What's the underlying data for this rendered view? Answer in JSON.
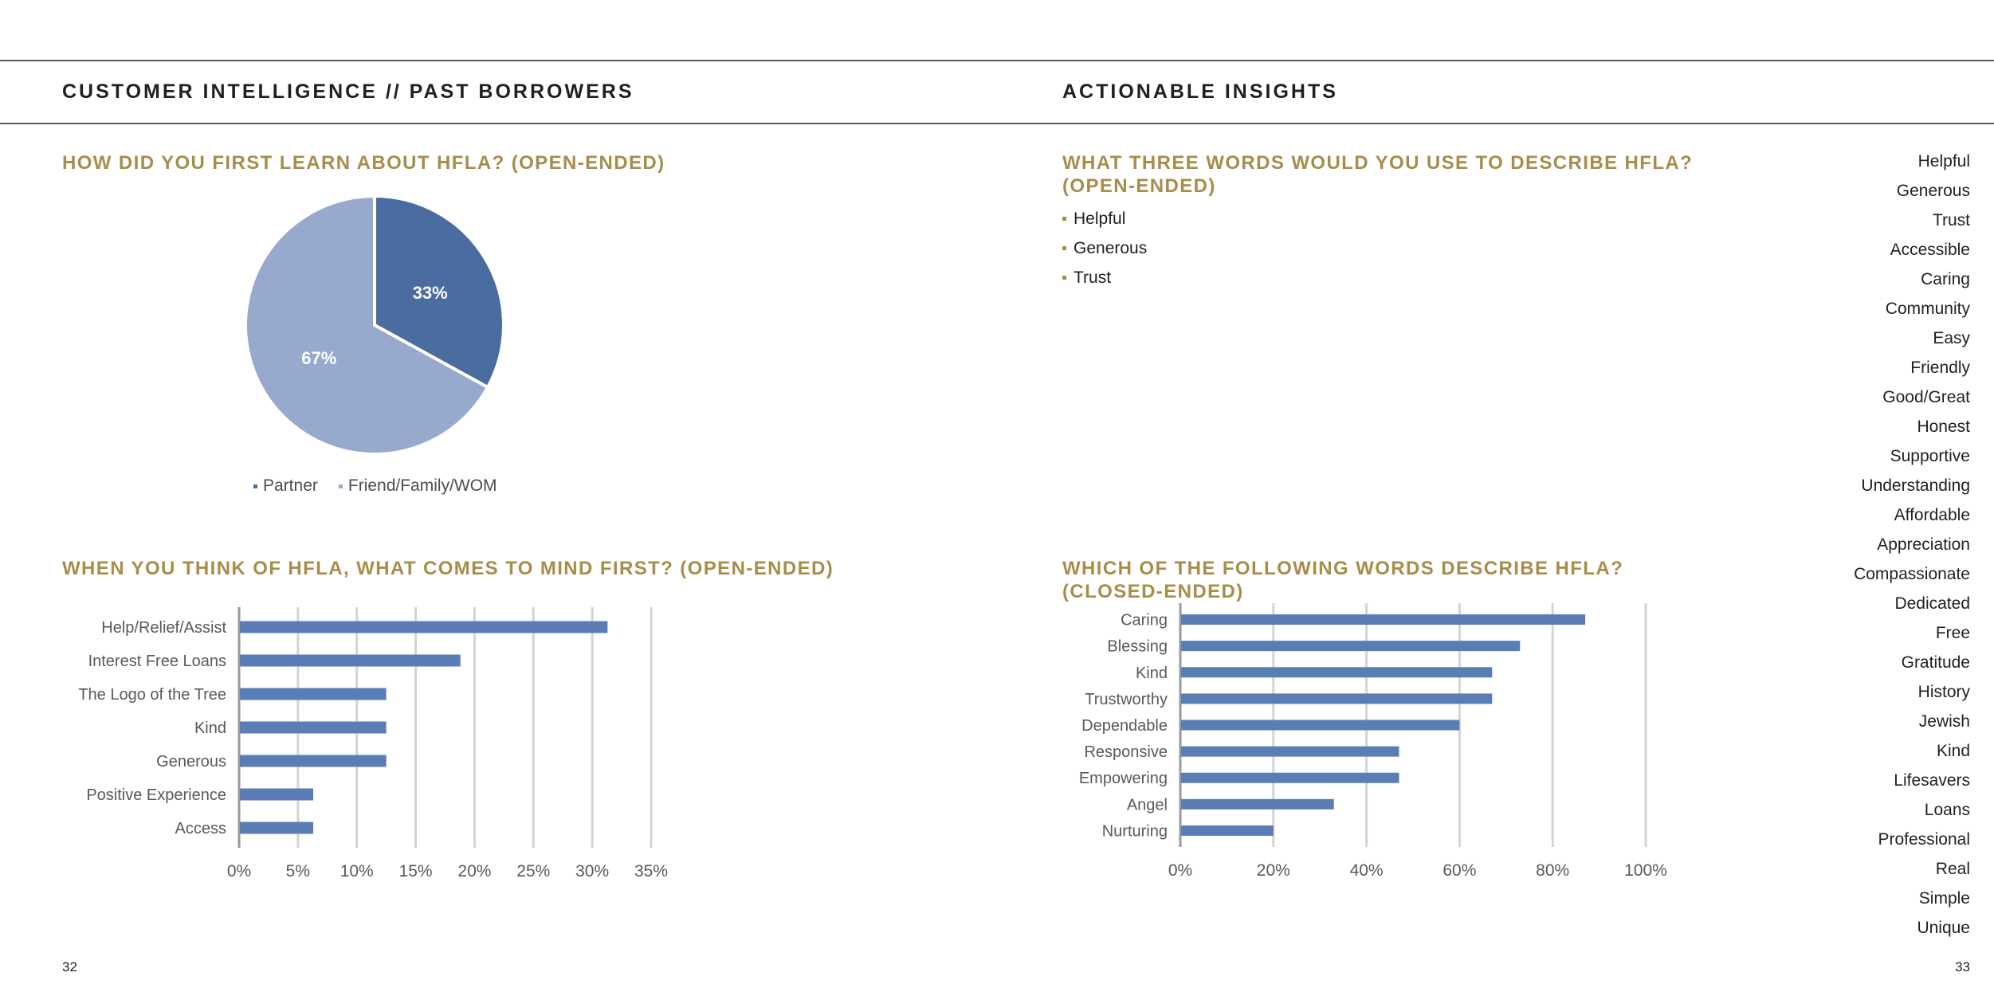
{
  "header": {
    "left_title": "CUSTOMER INTELLIGENCE // PAST BORROWERS",
    "right_title": "ACTIONABLE INSIGHTS"
  },
  "colors": {
    "gold": "#a88d4a",
    "bar_blue": "#5b7db5",
    "pie_dark": "#4a6ca0",
    "pie_light": "#97a9cc",
    "grid": "#d4d4d4"
  },
  "questions": {
    "q1": "HOW DID YOU FIRST LEARN ABOUT HFLA? (OPEN-ENDED)",
    "q2": "WHEN YOU THINK OF HFLA, WHAT COMES TO MIND FIRST? (OPEN-ENDED)",
    "q3_line1": "WHAT THREE WORDS WOULD YOU USE TO DESCRIBE HFLA?",
    "q3_line2": "(OPEN-ENDED)",
    "q4_line1": "WHICH OF THE FOLLOWING WORDS DESCRIBE HFLA?",
    "q4_line2": "(CLOSED-ENDED)"
  },
  "three_words": [
    "Helpful",
    "Generous",
    "Trust"
  ],
  "word_list": [
    "Helpful",
    "Generous",
    "Trust",
    "Accessible",
    "Caring",
    "Community",
    "Easy",
    "Friendly",
    "Good/Great",
    "Honest",
    "Supportive",
    "Understanding",
    "Affordable",
    "Appreciation",
    "Compassionate",
    "Dedicated",
    "Free",
    "Gratitude",
    "History",
    "Jewish",
    "Kind",
    "Lifesavers",
    "Loans",
    "Professional",
    "Real",
    "Simple",
    "Unique"
  ],
  "page_numbers": {
    "left": "32",
    "right": "33"
  },
  "chart_data": [
    {
      "type": "pie",
      "slices": [
        {
          "name": "Partner",
          "value": 33,
          "label": "33%",
          "color": "#4a6ca0"
        },
        {
          "name": "Friend/Family/WOM",
          "value": 67,
          "label": "67%",
          "color": "#97a9cc"
        }
      ],
      "legend": [
        "Partner",
        "Friend/Family/WOM"
      ],
      "legend_position": "bottom"
    },
    {
      "type": "bar",
      "orientation": "horizontal",
      "categories": [
        "Help/Relief/Assist",
        "Interest Free Loans",
        "The Logo of the Tree",
        "Kind",
        "Generous",
        "Positive Experience",
        "Access"
      ],
      "values": [
        31.3,
        18.8,
        12.5,
        12.5,
        12.5,
        6.3,
        6.3
      ],
      "xlim": [
        0,
        35
      ],
      "xticks": [
        "0%",
        "5%",
        "10%",
        "15%",
        "20%",
        "25%",
        "30%",
        "35%"
      ],
      "grid": true
    },
    {
      "type": "bar",
      "orientation": "horizontal",
      "categories": [
        "Caring",
        "Blessing",
        "Kind",
        "Trustworthy",
        "Dependable",
        "Responsive",
        "Empowering",
        "Angel",
        "Nurturing"
      ],
      "values": [
        87,
        73,
        67,
        67,
        60,
        47,
        47,
        33,
        20
      ],
      "xlim": [
        0,
        100
      ],
      "xticks": [
        "0%",
        "20%",
        "40%",
        "60%",
        "80%",
        "100%"
      ],
      "grid": true
    }
  ]
}
